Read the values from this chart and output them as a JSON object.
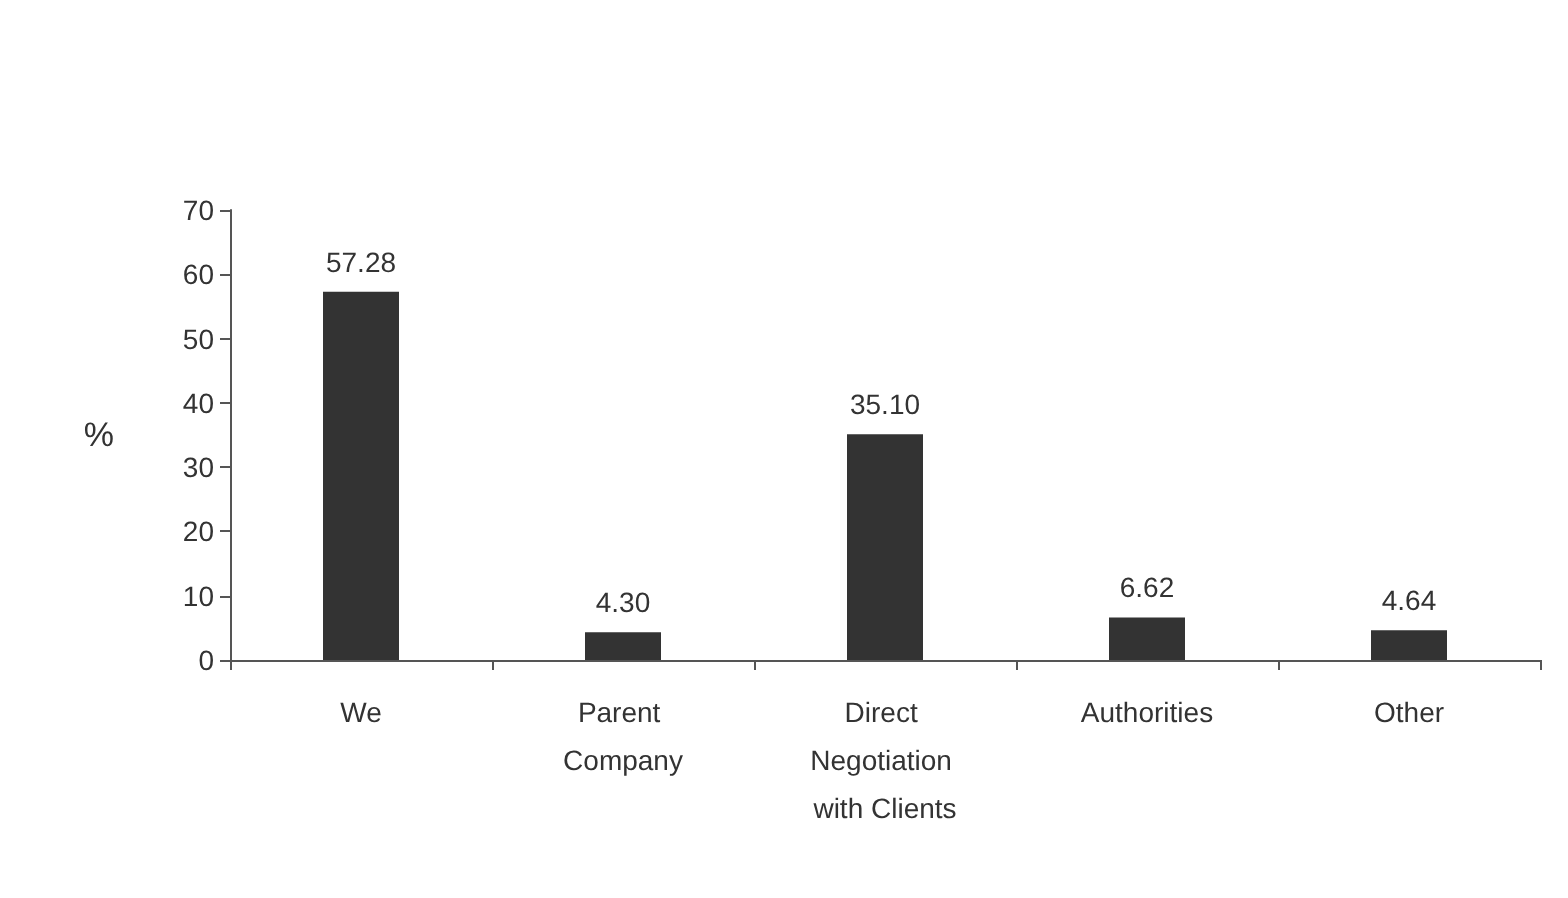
{
  "chart_data": {
    "type": "bar",
    "ylabel": "%",
    "categories": [
      "We",
      "Parent Company",
      "Direct Negotiation with Clients",
      "Authorities",
      "Other"
    ],
    "values": [
      57.28,
      4.3,
      35.1,
      6.62,
      4.64
    ],
    "value_labels": [
      "57.28",
      "4.30",
      "35.10",
      "6.62",
      "4.64"
    ],
    "color": "#333333",
    "ylim": [
      0,
      70
    ],
    "yticks": [
      0,
      10,
      20,
      30,
      40,
      50,
      60,
      70
    ],
    "grid": false
  }
}
